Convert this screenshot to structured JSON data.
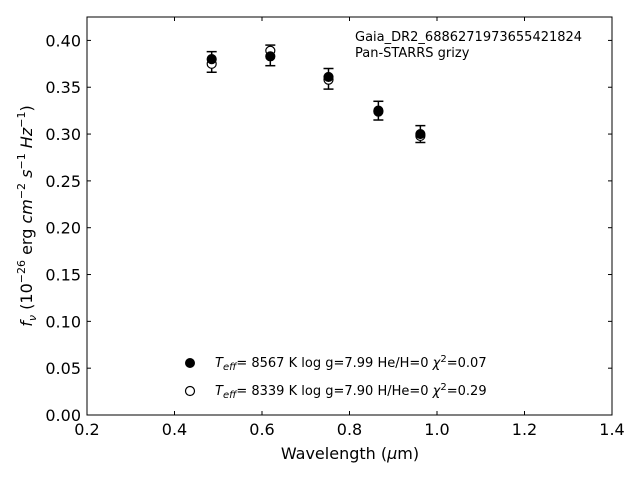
{
  "chart_data": {
    "type": "scatter",
    "annotation": [
      "Gaia_DR2_6886271973655421824",
      "Pan-STARRS grizy"
    ],
    "xlabel": "Wavelength (μm)",
    "ylabel": "f_ν (10^-26 erg cm^-2 s^-1 Hz^-1)",
    "xlim": [
      0.2,
      1.4
    ],
    "ylim": [
      0.0,
      0.425
    ],
    "xticks": [
      0.2,
      0.4,
      0.6,
      0.8,
      1.0,
      1.2,
      1.4
    ],
    "xtick_labels": [
      "0.2",
      "0.4",
      "0.6",
      "0.8",
      "1.0",
      "1.2",
      "1.4"
    ],
    "yticks": [
      0.0,
      0.05,
      0.1,
      0.15,
      0.2,
      0.25,
      0.3,
      0.35,
      0.4
    ],
    "ytick_labels": [
      "0.00",
      "0.05",
      "0.10",
      "0.15",
      "0.20",
      "0.25",
      "0.30",
      "0.35",
      "0.40"
    ],
    "grid": false,
    "legend_position": "lower-center",
    "observed": {
      "x": [
        0.485,
        0.619,
        0.752,
        0.866,
        0.962
      ],
      "y": [
        0.377,
        0.384,
        0.359,
        0.325,
        0.3
      ],
      "yerr": [
        0.011,
        0.011,
        0.011,
        0.01,
        0.009
      ]
    },
    "series": [
      {
        "marker": "filled",
        "legend": {
          "teff": "8567 K",
          "logg": "log g=7.99",
          "comp": "He/H=0",
          "chi2": "=0.07"
        },
        "x": [
          0.485,
          0.619,
          0.752,
          0.866,
          0.962
        ],
        "y": [
          0.38,
          0.383,
          0.361,
          0.325,
          0.3
        ]
      },
      {
        "marker": "open",
        "legend": {
          "teff": "8339 K",
          "logg": "log g=7.90",
          "comp": "H/He=0",
          "chi2": "=0.29"
        },
        "x": [
          0.485,
          0.619,
          0.752,
          0.866,
          0.962
        ],
        "y": [
          0.375,
          0.389,
          0.358,
          0.324,
          0.298
        ]
      }
    ]
  }
}
